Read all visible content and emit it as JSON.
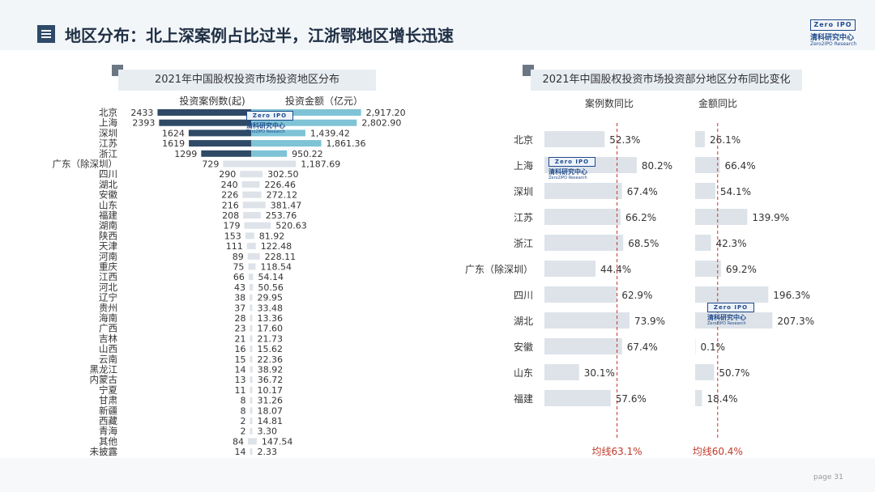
{
  "header": {
    "title": "地区分布：北上深案例占比过半，江浙鄂地区增长迅速",
    "logo_box": "Zero  IPO",
    "logo_cn": "清科研究中心",
    "logo_en": "Zero2IPO Research"
  },
  "footer": {
    "page_label": "page  31"
  },
  "colors": {
    "dark_bar": "#2f4a66",
    "teal_bar": "#7ec3d6",
    "light_bar": "#dde3e9",
    "avg_line": "#c0392b"
  },
  "chart_data": [
    {
      "type": "bar",
      "title": "2021年中国股权投资市场投资地区分布",
      "legend": {
        "cases": "投资案例数(起)",
        "amount": "投资金额（亿元）"
      },
      "categories": [
        "北京",
        "上海",
        "深圳",
        "江苏",
        "浙江",
        "广东（除深圳）",
        "四川",
        "湖北",
        "安徽",
        "山东",
        "福建",
        "湖南",
        "陕西",
        "天津",
        "河南",
        "重庆",
        "江西",
        "河北",
        "辽宁",
        "贵州",
        "海南",
        "广西",
        "吉林",
        "山西",
        "云南",
        "黑龙江",
        "内蒙古",
        "宁夏",
        "甘肃",
        "新疆",
        "西藏",
        "青海",
        "其他",
        "未披露"
      ],
      "series": [
        {
          "name": "投资案例数(起)",
          "values": [
            2433,
            2393,
            1624,
            1619,
            1299,
            729,
            290,
            240,
            226,
            216,
            208,
            179,
            153,
            111,
            89,
            75,
            66,
            43,
            38,
            37,
            28,
            23,
            21,
            16,
            15,
            14,
            13,
            11,
            8,
            8,
            2,
            2,
            84,
            14
          ],
          "labels": [
            "2433",
            "2393",
            "1624",
            "1619",
            "1299",
            "729",
            "290",
            "240",
            "226",
            "216",
            "208",
            "179",
            "153",
            "111",
            "89",
            "75",
            "66",
            "43",
            "38",
            "37",
            "28",
            "23",
            "21",
            "16",
            "15",
            "14",
            "13",
            "11",
            "8",
            "8",
            "2",
            "2",
            "84",
            "14"
          ]
        },
        {
          "name": "投资金额（亿元）",
          "values": [
            2917.2,
            2802.9,
            1439.42,
            1861.36,
            950.22,
            1187.69,
            302.5,
            226.46,
            272.12,
            381.47,
            253.76,
            520.63,
            81.92,
            122.48,
            228.11,
            118.54,
            54.14,
            50.56,
            29.95,
            33.48,
            13.36,
            17.6,
            21.73,
            15.62,
            22.36,
            38.92,
            36.72,
            10.17,
            31.26,
            18.07,
            14.81,
            3.3,
            147.54,
            2.33
          ],
          "labels": [
            "2,917.20",
            "2,802.90",
            "1,439.42",
            "1,861.36",
            "950.22",
            "1,187.69",
            "302.50",
            "226.46",
            "272.12",
            "381.47",
            "253.76",
            "520.63",
            "81.92",
            "122.48",
            "228.11",
            "118.54",
            "54.14",
            "50.56",
            "29.95",
            "33.48",
            "13.36",
            "17.60",
            "21.73",
            "15.62",
            "22.36",
            "38.92",
            "36.72",
            "10.17",
            "31.26",
            "18.07",
            "14.81",
            "3.30",
            "147.54",
            "2.33"
          ]
        }
      ]
    },
    {
      "type": "bar",
      "title": "2021年中国股权投资市场投资部分地区分布同比变化",
      "categories": [
        "北京",
        "上海",
        "深圳",
        "江苏",
        "浙江",
        "广东（除深圳）",
        "四川",
        "湖北",
        "安徽",
        "山东",
        "福建"
      ],
      "series": [
        {
          "name": "案例数同比",
          "values": [
            52.3,
            80.2,
            67.4,
            66.2,
            68.5,
            44.4,
            62.9,
            73.9,
            67.4,
            30.1,
            57.6
          ],
          "labels": [
            "52.3%",
            "80.2%",
            "67.4%",
            "66.2%",
            "68.5%",
            "44.4%",
            "62.9%",
            "73.9%",
            "67.4%",
            "30.1%",
            "57.6%"
          ],
          "average": 63.1,
          "average_label": "均线63.1%"
        },
        {
          "name": "金额同比",
          "values": [
            26.1,
            66.4,
            54.1,
            139.9,
            42.3,
            69.2,
            196.3,
            207.3,
            0.1,
            50.7,
            18.4
          ],
          "labels": [
            "26.1%",
            "66.4%",
            "54.1%",
            "139.9%",
            "42.3%",
            "69.2%",
            "196.3%",
            "207.3%",
            "0.1%",
            "50.7%",
            "18.4%"
          ],
          "average": 60.4,
          "average_label": "均线60.4%"
        }
      ]
    }
  ]
}
